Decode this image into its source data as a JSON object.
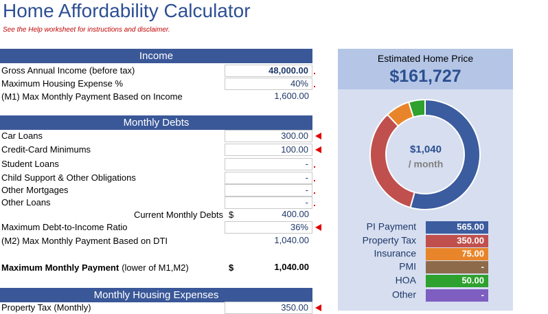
{
  "header": {
    "title": "Home Affordability Calculator",
    "note": "See the Help worksheet for instructions and disclaimer."
  },
  "sections": [
    {
      "title": "Income",
      "rows": [
        {
          "label": "Gross Annual Income (before tax)",
          "value": "48,000.00"
        },
        {
          "label": "Maximum Housing Expense %",
          "value": "40%"
        },
        {
          "label": "(M1) Max Monthly Payment Based on Income",
          "value": "1,600.00"
        }
      ]
    },
    {
      "title": "Monthly Debts",
      "rows": [
        {
          "label": "Car Loans",
          "value": "300.00"
        },
        {
          "label": "Credit-Card Minimums",
          "value": "100.00"
        },
        {
          "label": "Student Loans",
          "value": "-"
        },
        {
          "label": "Child Support & Other Obligations",
          "value": "-"
        },
        {
          "label": "Other Mortgages",
          "value": "-"
        },
        {
          "label": "Other Loans",
          "value": "-"
        },
        {
          "label": "Current Monthly Debts",
          "currency": "$",
          "value": "400.00"
        },
        {
          "label": "Maximum Debt-to-Income Ratio",
          "value": "36%"
        },
        {
          "label": "(M2) Max Monthly Payment Based on DTI",
          "value": "1,040.00"
        },
        {
          "label": "Maximum Monthly Payment",
          "note": "(lower of M1,M2)",
          "currency": "$",
          "value": "1,040.00"
        }
      ]
    },
    {
      "title": "Monthly Housing Expenses",
      "rows": [
        {
          "label": "Property Tax (Monthly)",
          "value": "350.00"
        }
      ]
    }
  ],
  "price_panel": {
    "title": "Estimated Home Price",
    "price": "$161,727",
    "center_value": "$1,040",
    "center_unit": "/ month"
  },
  "payment_chart": {
    "type": "pie",
    "categories": [
      "PI Payment",
      "Property Tax",
      "Insurance",
      "PMI",
      "HOA",
      "Other"
    ],
    "values": [
      565,
      350,
      75,
      0,
      50,
      0
    ],
    "value_labels": [
      "565.00",
      "350.00",
      "75.00",
      "-",
      "50.00",
      "-"
    ],
    "colors": [
      "#3b5c9e",
      "#c0504d",
      "#e8852a",
      "#8c6a4a",
      "#2ea12e",
      "#7e5ec0"
    ]
  }
}
